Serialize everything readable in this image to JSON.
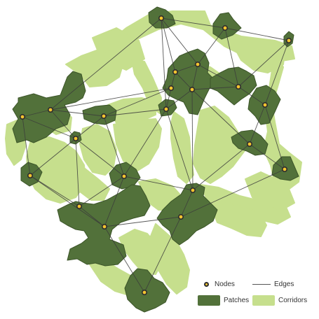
{
  "colors": {
    "patch": "#52713a",
    "patch_edge": "#3c5529",
    "corridor": "#c6df8d",
    "edge": "#3b3b3b",
    "node_fill": "#f4c430",
    "node_stroke": "#2d2d2d",
    "background": "#ffffff"
  },
  "legend": {
    "nodes_label": "Nodes",
    "edges_label": "Edges",
    "patches_label": "Patches",
    "corridors_label": "Corridors"
  }
}
